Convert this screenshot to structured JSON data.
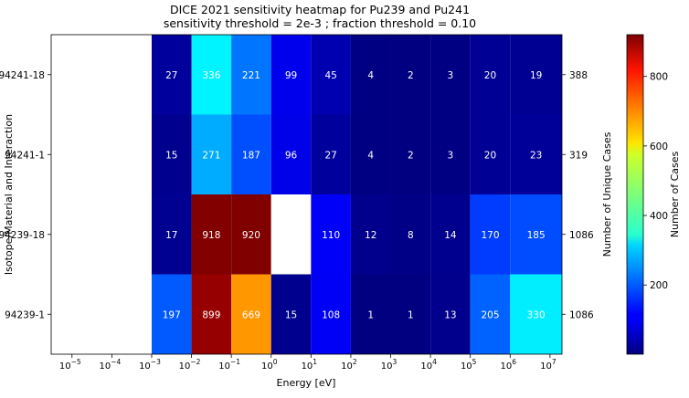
{
  "chart_data": {
    "type": "heatmap",
    "title": "DICE 2021 sensitivity heatmap for Pu239 and Pu241",
    "subtitle": "sensitivity threshold = 2e-3 ; fraction threshold = 0.10",
    "xlabel": "Energy [eV]",
    "ylabel": "Isotope/Material and Interaction",
    "right_ylabel": "Number of Unique Cases",
    "colorbar_label": "Number of Cases",
    "colormap": "jet",
    "x_scale": "log",
    "xlim": [
      3e-06,
      20000000.0
    ],
    "x_tick_exponents": [
      "-5",
      "-4",
      "-3",
      "-2",
      "-1",
      "0",
      "1",
      "2",
      "3",
      "4",
      "5",
      "6",
      "7"
    ],
    "x_bin_edges": [
      0.001,
      0.01,
      0.1,
      1,
      10,
      100,
      1000,
      10000,
      100000,
      1000000,
      20000000
    ],
    "rows": [
      "94241-18",
      "94241-1",
      "94239-18",
      "94239-1"
    ],
    "unique_cases": [
      "388",
      "319",
      "1086",
      "1086"
    ],
    "values": [
      [
        27,
        336,
        221,
        99,
        45,
        4,
        2,
        3,
        20,
        19
      ],
      [
        15,
        271,
        187,
        96,
        27,
        4,
        2,
        3,
        20,
        23
      ],
      [
        17,
        918,
        920,
        null,
        110,
        12,
        8,
        14,
        170,
        185
      ],
      [
        197,
        899,
        669,
        15,
        108,
        1,
        1,
        13,
        205,
        330
      ]
    ],
    "colorbar_range": [
      1,
      920
    ],
    "colorbar_ticks": [
      "200",
      "400",
      "600",
      "800"
    ]
  }
}
